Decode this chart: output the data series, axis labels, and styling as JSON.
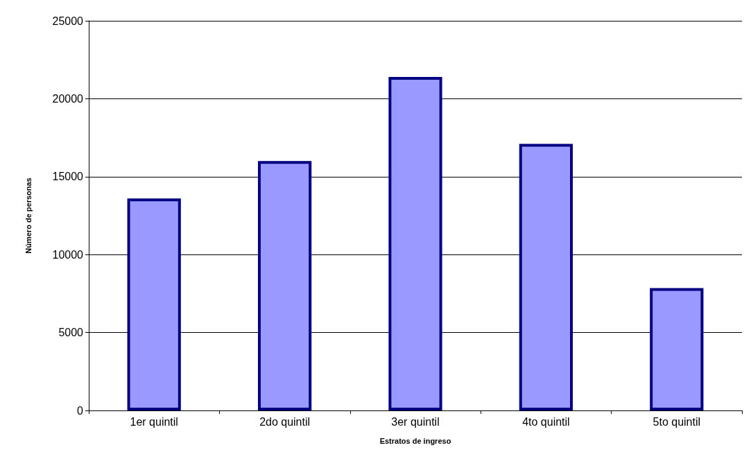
{
  "chart_data": {
    "type": "bar",
    "xlabel": "Estratos de ingreso",
    "ylabel": "Número de personas",
    "categories": [
      "1er quintil",
      "2do quintil",
      "3er quintil",
      "4to quintil",
      "5to quintil"
    ],
    "values": [
      13600,
      16000,
      21400,
      17100,
      7850
    ],
    "color": "#9999ff",
    "ylim": [
      0,
      25000
    ],
    "yticks": [
      0,
      5000,
      10000,
      15000,
      20000,
      25000
    ],
    "grid": "y"
  }
}
